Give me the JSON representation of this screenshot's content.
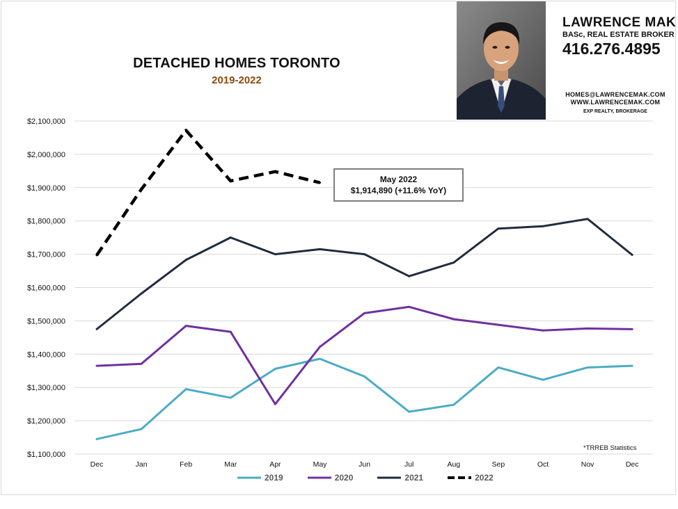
{
  "header": {
    "title": "DETACHED HOMES TORONTO",
    "subtitle": "2019-2022"
  },
  "agent": {
    "name": "LAWRENCE MAK",
    "title": "BASc, REAL ESTATE BROKER",
    "phone": "416.276.4895",
    "email": "HOMES@LAWRENCEMAK.COM",
    "website": "WWW.LAWRENCEMAK.COM",
    "brokerage": "EXP REALTY, BROKERAGE"
  },
  "callout": {
    "line1": "May 2022",
    "line2": "$1,914,890  (+11.6%  YoY)"
  },
  "source_note": "*TRREB Statistics",
  "colors": {
    "s2019": "#4bacc6",
    "s2020": "#7030a0",
    "s2021": "#1f2d3d",
    "s2022": "#000000",
    "grid": "#d9d9d9",
    "subtitle": "#8b4a12"
  },
  "chart_data": {
    "type": "line",
    "categories": [
      "Dec",
      "Jan",
      "Feb",
      "Mar",
      "Apr",
      "May",
      "Jun",
      "Jul",
      "Aug",
      "Sep",
      "Oct",
      "Nov",
      "Dec"
    ],
    "ylim": [
      1100000,
      2100000
    ],
    "yticks": [
      1100000,
      1200000,
      1300000,
      1400000,
      1500000,
      1600000,
      1700000,
      1800000,
      1900000,
      2000000,
      2100000
    ],
    "ytick_labels": [
      "$1,100,000",
      "$1,200,000",
      "$1,300,000",
      "$1,400,000",
      "$1,500,000",
      "$1,600,000",
      "$1,700,000",
      "$1,800,000",
      "$1,900,000",
      "$2,000,000",
      "$2,100,000"
    ],
    "grid": true,
    "legend_position": "bottom",
    "series": [
      {
        "name": "2019",
        "color": "#4bacc6",
        "dashed": false,
        "values": [
          1145000,
          1175000,
          1295000,
          1269000,
          1356000,
          1386000,
          1333000,
          1227000,
          1248000,
          1360000,
          1323000,
          1360000,
          1365000
        ]
      },
      {
        "name": "2020",
        "color": "#7030a0",
        "dashed": false,
        "values": [
          1365000,
          1371000,
          1485000,
          1467000,
          1250000,
          1422000,
          1523000,
          1542000,
          1505000,
          1488000,
          1471000,
          1477000,
          1475000
        ]
      },
      {
        "name": "2021",
        "color": "#1f2d3d",
        "dashed": false,
        "values": [
          1475000,
          1582000,
          1683000,
          1750000,
          1700000,
          1715000,
          1700000,
          1634000,
          1675000,
          1777000,
          1784000,
          1806000,
          1698000
        ]
      },
      {
        "name": "2022",
        "color": "#000000",
        "dashed": true,
        "values": [
          1697000,
          1895000,
          2072000,
          1920000,
          1948000,
          1914890,
          null,
          null,
          null,
          null,
          null,
          null,
          null
        ]
      }
    ]
  }
}
